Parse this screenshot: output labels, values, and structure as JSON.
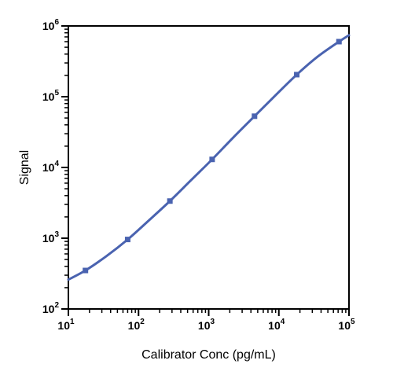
{
  "chart_data": {
    "type": "scatter",
    "title": "",
    "xlabel": "Calibrator Conc (pg/mL)",
    "ylabel": "Signal",
    "x_scale": "log",
    "y_scale": "log",
    "xlim": [
      10,
      100000
    ],
    "ylim": [
      100,
      1000000
    ],
    "x_ticks": [
      {
        "value": 10,
        "base": "10",
        "exp": "1"
      },
      {
        "value": 100,
        "base": "10",
        "exp": "2"
      },
      {
        "value": 1000,
        "base": "10",
        "exp": "3"
      },
      {
        "value": 10000,
        "base": "10",
        "exp": "4"
      },
      {
        "value": 100000,
        "base": "10",
        "exp": "5"
      }
    ],
    "y_ticks": [
      {
        "value": 100,
        "base": "10",
        "exp": "2"
      },
      {
        "value": 1000,
        "base": "10",
        "exp": "3"
      },
      {
        "value": 10000,
        "base": "10",
        "exp": "4"
      },
      {
        "value": 100000,
        "base": "10",
        "exp": "5"
      },
      {
        "value": 1000000,
        "base": "10",
        "exp": "6"
      }
    ],
    "grid": false,
    "legend": "none",
    "series": [
      {
        "name": "",
        "color": "#4a63b0",
        "marker": "square",
        "points": [
          {
            "x": 17.5,
            "y": 350
          },
          {
            "x": 70,
            "y": 960
          },
          {
            "x": 280,
            "y": 3350
          },
          {
            "x": 1120,
            "y": 13000
          },
          {
            "x": 4500,
            "y": 53000
          },
          {
            "x": 18000,
            "y": 205000
          },
          {
            "x": 72000,
            "y": 600000
          }
        ],
        "fit_curve": [
          {
            "x": 10,
            "y": 260
          },
          {
            "x": 17.5,
            "y": 350
          },
          {
            "x": 35,
            "y": 560
          },
          {
            "x": 70,
            "y": 960
          },
          {
            "x": 140,
            "y": 1780
          },
          {
            "x": 280,
            "y": 3350
          },
          {
            "x": 560,
            "y": 6600
          },
          {
            "x": 1120,
            "y": 13000
          },
          {
            "x": 2240,
            "y": 26500
          },
          {
            "x": 4500,
            "y": 53000
          },
          {
            "x": 9000,
            "y": 105000
          },
          {
            "x": 18000,
            "y": 205000
          },
          {
            "x": 36000,
            "y": 370000
          },
          {
            "x": 72000,
            "y": 600000
          },
          {
            "x": 100000,
            "y": 740000
          }
        ]
      }
    ]
  }
}
